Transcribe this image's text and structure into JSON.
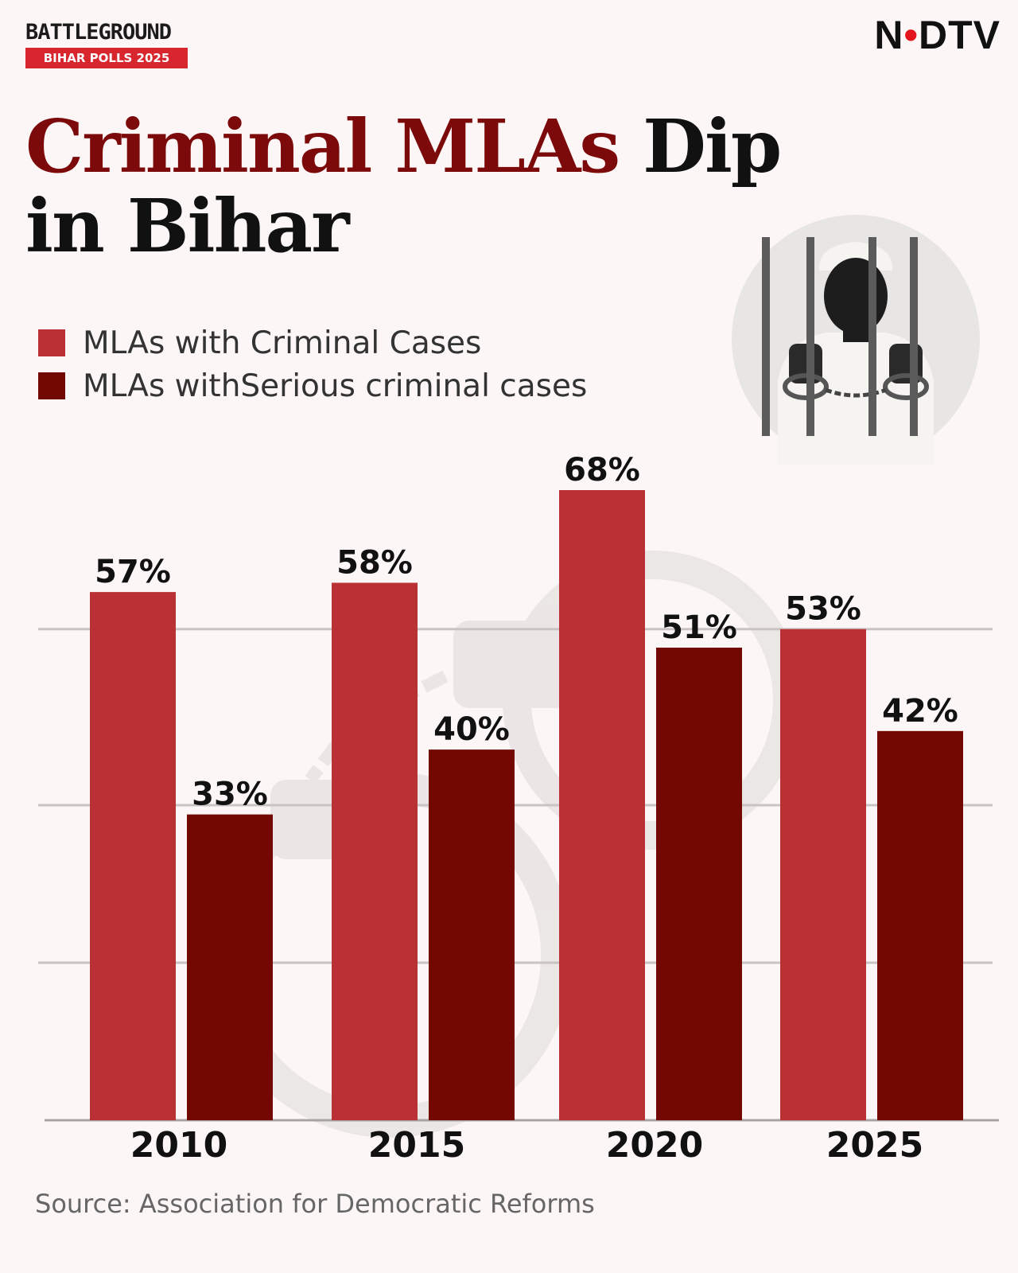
{
  "brand": {
    "name": "BATTLEGROUND",
    "sub": "BIHAR POLLS 2025"
  },
  "logo": {
    "text": "NDTV"
  },
  "title": {
    "accent": "Criminal MLAs",
    "rest": "Dip in Bihar"
  },
  "legend": [
    {
      "label": "MLAs with Criminal Cases",
      "color": "#bb3035",
      "icon": "square-swatch"
    },
    {
      "label": "MLAs withSerious criminal cases",
      "color": "#730803",
      "icon": "square-swatch"
    }
  ],
  "illustration": {
    "icon": "jailed-person-icon"
  },
  "chart_data": {
    "type": "bar",
    "title": "Criminal MLAs Dip in Bihar",
    "categories": [
      "2010",
      "2015",
      "2020",
      "2025"
    ],
    "series": [
      {
        "name": "MLAs with Criminal Cases",
        "values": [
          57,
          58,
          68,
          53
        ],
        "labels": [
          "57%",
          "58%",
          "68%",
          "53%"
        ],
        "color": "#bb3035"
      },
      {
        "name": "MLAs withSerious criminal cases",
        "values": [
          33,
          40,
          51,
          42
        ],
        "labels": [
          "33%",
          "40%",
          "51%",
          "42%"
        ],
        "color": "#730803"
      }
    ],
    "ylim": [
      0,
      68
    ],
    "gridlines": [
      17,
      34,
      53
    ],
    "xlabel": "",
    "ylabel": "",
    "legend_position": "top-left"
  },
  "source": "Source: Association for Democratic Reforms"
}
